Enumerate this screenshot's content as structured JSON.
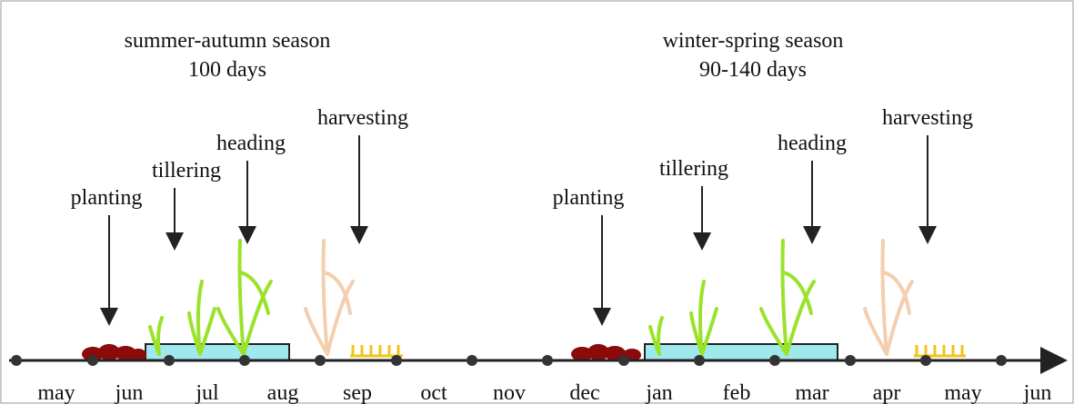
{
  "seasons": [
    {
      "title": "summer-autumn season",
      "duration": "100 days",
      "stages": [
        "planting",
        "tillering",
        "heading",
        "harvesting"
      ]
    },
    {
      "title": "winter-spring season",
      "duration": "90-140 days",
      "stages": [
        "planting",
        "tillering",
        "heading",
        "harvesting"
      ]
    }
  ],
  "months": [
    "may",
    "jun",
    "jul",
    "aug",
    "sep",
    "oct",
    "nov",
    "dec",
    "jan",
    "feb",
    "mar",
    "apr",
    "may",
    "jun"
  ]
}
